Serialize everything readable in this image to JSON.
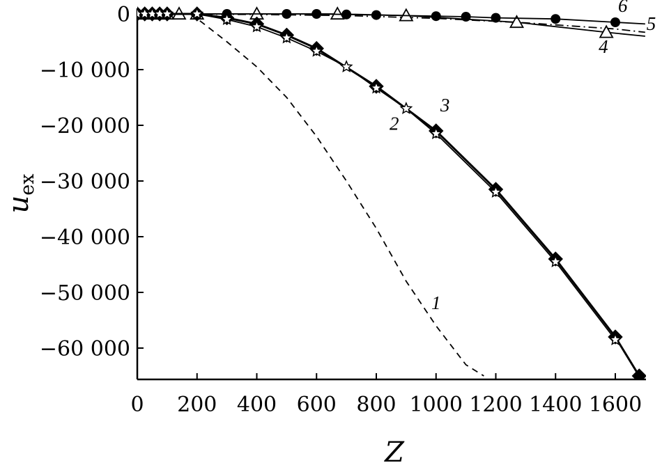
{
  "chart_data": {
    "type": "line",
    "title": "",
    "xlabel": "Z",
    "ylabel": "u",
    "ylabel_subscript": "ex",
    "xlim": [
      0,
      1700
    ],
    "ylim": [
      -65000,
      0
    ],
    "x_ticks": [
      0,
      200,
      400,
      600,
      800,
      1000,
      1200,
      1400,
      1600
    ],
    "x_tick_labels": [
      "0",
      "200",
      "400",
      "600",
      "800",
      "1000",
      "1200",
      "1400",
      "1600"
    ],
    "y_ticks": [
      0,
      -10000,
      -20000,
      -30000,
      -40000,
      -50000,
      -60000
    ],
    "y_tick_labels": [
      "0",
      "−10 000",
      "−20 000",
      "−30 000",
      "−40 000",
      "−50 000",
      "−60 000"
    ],
    "grid": false,
    "legend": "none",
    "series": [
      {
        "label": "1",
        "style": "dashed",
        "marker": "none",
        "color": "#000000",
        "x": [
          180,
          300,
          400,
          500,
          600,
          700,
          800,
          900,
          1000,
          1100,
          1160
        ],
        "y": [
          0,
          -5000,
          -9500,
          -15000,
          -22000,
          -30000,
          -38500,
          -48000,
          -56000,
          -63000,
          -65000
        ]
      },
      {
        "label": "2",
        "style": "solid",
        "marker": "diamond",
        "color": "#000000",
        "x": [
          0,
          25,
          50,
          75,
          100,
          200,
          300,
          400,
          500,
          600,
          800,
          1000,
          1200,
          1400,
          1600,
          1680
        ],
        "y": [
          0,
          0,
          0,
          0,
          0,
          0,
          -700,
          -1800,
          -3800,
          -6200,
          -13000,
          -21000,
          -31500,
          -44000,
          -58000,
          -65000
        ]
      },
      {
        "label": "3",
        "style": "solid",
        "marker": "star",
        "color": "#000000",
        "x": [
          0,
          25,
          50,
          75,
          100,
          200,
          300,
          400,
          500,
          600,
          700,
          800,
          900,
          1000,
          1200,
          1400,
          1600
        ],
        "y": [
          0,
          0,
          0,
          0,
          0,
          0,
          -1000,
          -2300,
          -4300,
          -6700,
          -9500,
          -13300,
          -17000,
          -21500,
          -32000,
          -44500,
          -58500
        ]
      },
      {
        "label": "4",
        "style": "solid",
        "marker": "triangle",
        "color": "#000000",
        "x": [
          0,
          25,
          50,
          75,
          100,
          140,
          200,
          400,
          670,
          900,
          1270,
          1570,
          1700
        ],
        "y": [
          0,
          0,
          0,
          0,
          0,
          0,
          0,
          0,
          0,
          -300,
          -1500,
          -3300,
          -4000
        ]
      },
      {
        "label": "5",
        "style": "dashdot",
        "marker": "none",
        "color": "#000000",
        "x": [
          0,
          400,
          700,
          1000,
          1300,
          1600,
          1700
        ],
        "y": [
          0,
          -100,
          -300,
          -800,
          -1600,
          -2700,
          -3300
        ]
      },
      {
        "label": "6",
        "style": "solid",
        "marker": "circle",
        "color": "#000000",
        "x": [
          0,
          300,
          500,
          600,
          700,
          800,
          1000,
          1100,
          1200,
          1400,
          1600,
          1700
        ],
        "y": [
          0,
          0,
          0,
          0,
          -100,
          -200,
          -400,
          -500,
          -700,
          -900,
          -1500,
          -1800
        ]
      }
    ],
    "curve_labels": [
      {
        "series": "1",
        "text": "1",
        "x": 1000,
        "y": -53000
      },
      {
        "series": "2",
        "text": "2",
        "x": 860,
        "y": -20800
      },
      {
        "series": "3",
        "text": "3",
        "x": 1030,
        "y": -17500
      },
      {
        "series": "4",
        "text": "4",
        "x": 1560,
        "y": -7000
      },
      {
        "series": "5",
        "text": "5",
        "x": 1720,
        "y": -2900
      },
      {
        "series": "6",
        "text": "6",
        "x": 1625,
        "y": 400
      }
    ]
  }
}
